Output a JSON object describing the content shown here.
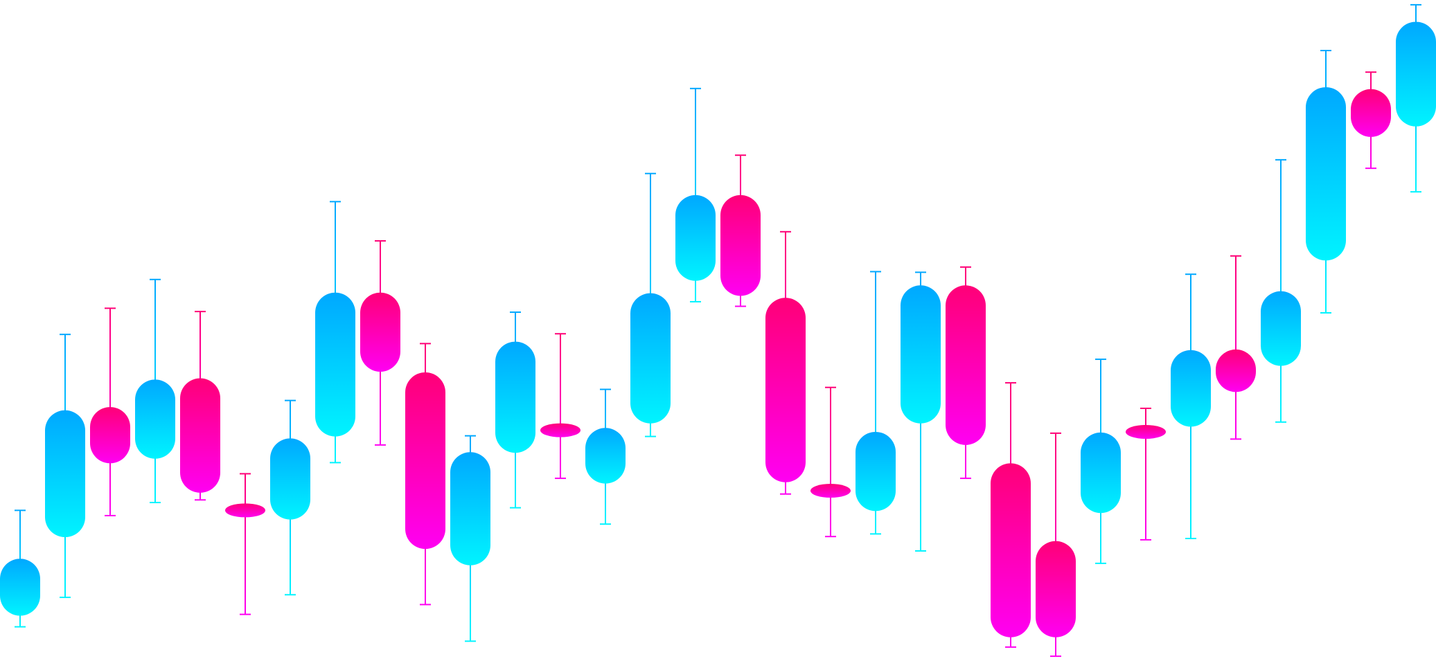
{
  "chart_data": {
    "type": "candlestick",
    "title": "",
    "xlabel": "",
    "ylabel": "",
    "grid": false,
    "legend": "none",
    "ylim": [
      0,
      100
    ],
    "colors": {
      "bull_top": "#00a8ff",
      "bull_bottom": "#00f4ff",
      "bear_top": "#ff0077",
      "bear_bottom": "#ff00f2"
    },
    "candles": [
      {
        "open": 6.4,
        "close": 15.1,
        "high": 22.5,
        "low": 4.7
      },
      {
        "open": 18.4,
        "close": 37.8,
        "high": 49.4,
        "low": 9.2
      },
      {
        "open": 38.3,
        "close": 29.7,
        "high": 53.4,
        "low": 21.7
      },
      {
        "open": 30.4,
        "close": 42.5,
        "high": 57.8,
        "low": 23.7
      },
      {
        "open": 42.7,
        "close": 25.2,
        "high": 52.9,
        "low": 24.1
      },
      {
        "open": 23.2,
        "close": 21.8,
        "high": 28.1,
        "low": 6.6
      },
      {
        "open": 21.1,
        "close": 33.5,
        "high": 39.3,
        "low": 9.6
      },
      {
        "open": 33.8,
        "close": 55.8,
        "high": 69.7,
        "low": 29.8
      },
      {
        "open": 55.8,
        "close": 43.7,
        "high": 63.7,
        "low": 32.5
      },
      {
        "open": 43.6,
        "close": 16.6,
        "high": 48.0,
        "low": 8.1
      },
      {
        "open": 14.1,
        "close": 31.4,
        "high": 33.9,
        "low": 2.5
      },
      {
        "open": 31.3,
        "close": 48.3,
        "high": 52.8,
        "low": 22.9
      },
      {
        "open": 35.4,
        "close": 34.1,
        "high": 49.5,
        "low": 27.4
      },
      {
        "open": 26.6,
        "close": 35.1,
        "high": 41.0,
        "low": 20.4
      },
      {
        "open": 35.8,
        "close": 55.7,
        "high": 74.0,
        "low": 33.8
      },
      {
        "open": 57.6,
        "close": 70.7,
        "high": 87.0,
        "low": 54.4
      },
      {
        "open": 70.7,
        "close": 55.3,
        "high": 76.8,
        "low": 53.7
      },
      {
        "open": 55.0,
        "close": 26.8,
        "high": 65.1,
        "low": 25.0
      },
      {
        "open": 26.3,
        "close": 24.7,
        "high": 41.3,
        "low": 18.5
      },
      {
        "open": 22.4,
        "close": 34.5,
        "high": 59.0,
        "low": 18.9
      },
      {
        "open": 35.8,
        "close": 56.9,
        "high": 58.9,
        "low": 16.3
      },
      {
        "open": 56.9,
        "close": 32.5,
        "high": 59.7,
        "low": 27.4
      },
      {
        "open": 29.7,
        "close": 3.1,
        "high": 42.0,
        "low": 1.6
      },
      {
        "open": 17.8,
        "close": 3.1,
        "high": 34.3,
        "low": 0.2
      },
      {
        "open": 22.1,
        "close": 34.4,
        "high": 45.6,
        "low": 14.4
      },
      {
        "open": 35.2,
        "close": 33.8,
        "high": 38.1,
        "low": 18.0
      },
      {
        "open": 35.3,
        "close": 47.0,
        "high": 58.6,
        "low": 18.2
      },
      {
        "open": 47.1,
        "close": 40.6,
        "high": 61.4,
        "low": 33.4
      },
      {
        "open": 44.6,
        "close": 56.0,
        "high": 76.1,
        "low": 36.0
      },
      {
        "open": 60.7,
        "close": 87.2,
        "high": 92.8,
        "low": 52.7
      },
      {
        "open": 86.9,
        "close": 79.6,
        "high": 89.5,
        "low": 74.8
      },
      {
        "open": 81.2,
        "close": 97.2,
        "high": 99.8,
        "low": 71.2
      }
    ]
  }
}
